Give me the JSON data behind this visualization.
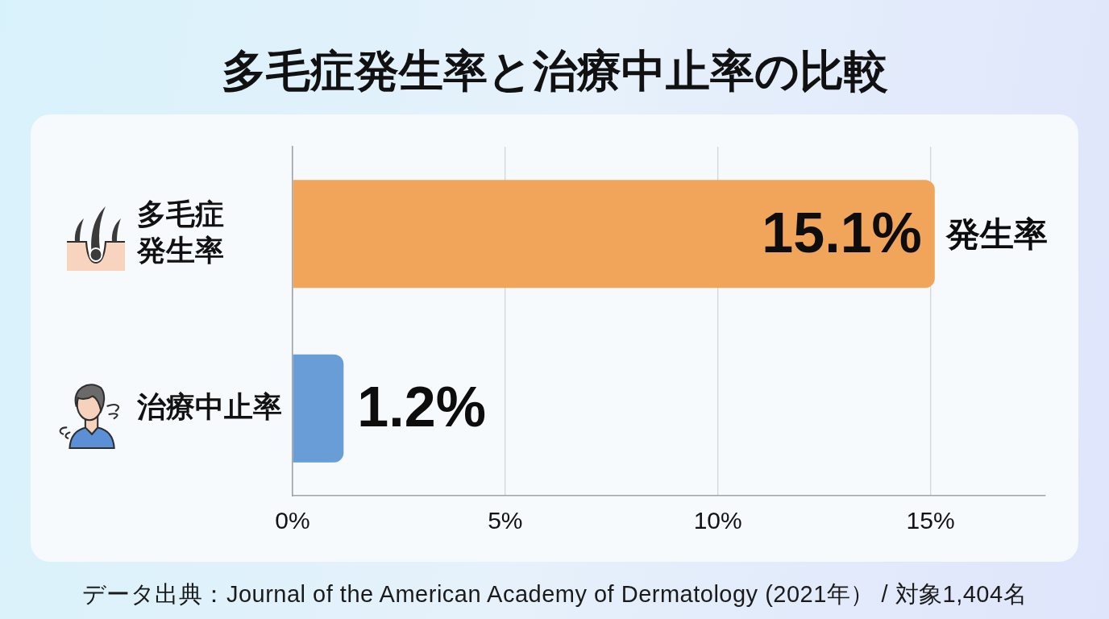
{
  "chart_data": {
    "type": "bar",
    "orientation": "horizontal",
    "title": "多毛症発生率と治療中止率の比較",
    "categories": [
      "多毛症発生率",
      "治療中止率"
    ],
    "values": [
      15.1,
      1.2
    ],
    "colors": [
      "#f1a55a",
      "#689dd7"
    ],
    "value_labels": [
      "15.1%",
      "1.2%"
    ],
    "xlim": [
      0,
      17.7
    ],
    "xticks": [
      {
        "value": 0,
        "label": "0%"
      },
      {
        "value": 5,
        "label": "5%"
      },
      {
        "value": 10,
        "label": "10%"
      },
      {
        "value": 15,
        "label": "15%"
      }
    ],
    "grid": "x",
    "annotations": [
      {
        "text": "発生率",
        "x": 15.1,
        "y": "多毛症発生率"
      },
      "データ出典：Journal of the American Academy of Dermatology (2021年） / 対象1,404名"
    ]
  }
}
